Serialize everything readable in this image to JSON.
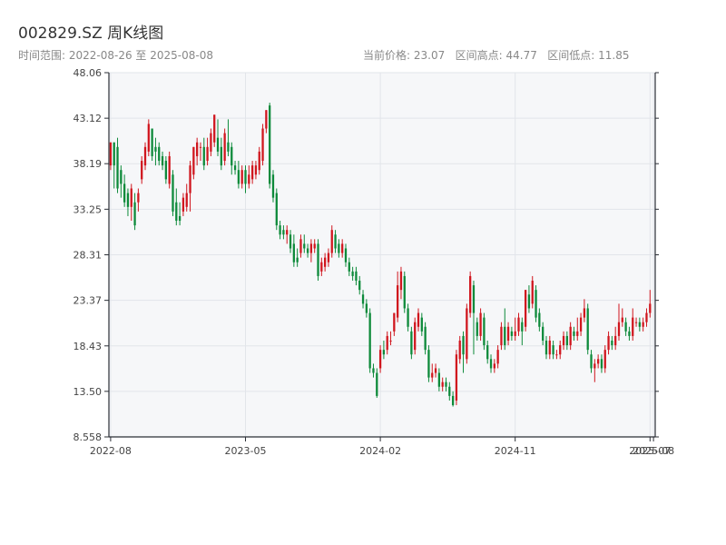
{
  "header": {
    "title": "002829.SZ 周K线图",
    "range_text": "时间范围: 2022-08-26 至 2025-08-08",
    "stats_text": "当前价格: 23.07   区间高点: 44.77   区间低点: 11.85"
  },
  "colors": {
    "up": "#d0161e",
    "down": "#0d8a3a",
    "plot_bg": "#f6f7f9",
    "grid": "#e2e5ea",
    "axis": "#2b2f36"
  },
  "chart_data": {
    "type": "candlestick",
    "title": "002829.SZ 周K线图",
    "xlabel": "",
    "ylabel": "",
    "ylim": [
      8.558,
      48.06
    ],
    "yticks": [
      "8.558",
      "13.50",
      "18.43",
      "23.37",
      "28.31",
      "33.25",
      "38.19",
      "43.12",
      "48.06"
    ],
    "ytick_values": [
      8.558,
      13.5,
      18.43,
      23.37,
      28.31,
      33.25,
      38.19,
      43.12,
      48.06
    ],
    "xticks": [
      "2022-08",
      "2023-05",
      "2024-02",
      "2024-11",
      "2025-07",
      "2025-08"
    ],
    "xtick_weeks": [
      0,
      39,
      78,
      117,
      156,
      157
    ],
    "grid": true,
    "series": [
      {
        "name": "",
        "ohlc_note": "weekly [open, close, low, high], one per week from 2022-08-26",
        "candles": [
          [
            38.0,
            40.5,
            37.5,
            40.5
          ],
          [
            40.5,
            38.0,
            35.5,
            40.5
          ],
          [
            40.0,
            35.5,
            35.0,
            41.0
          ],
          [
            37.5,
            36.0,
            34.5,
            38.0
          ],
          [
            36.0,
            34.0,
            33.5,
            37.0
          ],
          [
            35.0,
            33.5,
            32.5,
            35.5
          ],
          [
            33.5,
            35.5,
            32.0,
            36.0
          ],
          [
            34.0,
            31.5,
            31.0,
            35.0
          ],
          [
            34.0,
            35.0,
            33.0,
            35.5
          ],
          [
            36.5,
            38.5,
            36.0,
            39.0
          ],
          [
            38.0,
            40.0,
            37.5,
            40.5
          ],
          [
            39.5,
            42.5,
            39.0,
            43.0
          ],
          [
            42.0,
            39.0,
            38.5,
            42.0
          ],
          [
            40.0,
            39.5,
            38.0,
            41.0
          ],
          [
            40.0,
            38.5,
            38.0,
            40.5
          ],
          [
            39.0,
            38.0,
            37.5,
            39.5
          ],
          [
            38.5,
            36.5,
            36.0,
            39.0
          ],
          [
            36.0,
            39.0,
            35.5,
            39.5
          ],
          [
            37.0,
            33.0,
            32.5,
            37.5
          ],
          [
            34.0,
            32.0,
            31.5,
            35.5
          ],
          [
            32.5,
            32.0,
            31.5,
            34.0
          ],
          [
            33.0,
            34.5,
            32.5,
            35.0
          ],
          [
            33.5,
            35.0,
            33.0,
            36.0
          ],
          [
            35.0,
            38.0,
            33.0,
            38.5
          ],
          [
            37.0,
            40.0,
            36.5,
            40.0
          ],
          [
            39.0,
            40.5,
            38.0,
            41.0
          ],
          [
            40.0,
            40.0,
            38.5,
            40.5
          ],
          [
            40.0,
            38.0,
            37.5,
            41.0
          ],
          [
            38.5,
            40.0,
            38.0,
            41.0
          ],
          [
            39.5,
            41.5,
            39.0,
            42.0
          ],
          [
            40.5,
            43.5,
            40.0,
            43.5
          ],
          [
            41.0,
            39.5,
            39.0,
            43.0
          ],
          [
            40.0,
            38.0,
            37.5,
            41.0
          ],
          [
            38.5,
            41.5,
            38.0,
            42.0
          ],
          [
            40.5,
            39.5,
            39.0,
            43.0
          ],
          [
            40.0,
            38.0,
            37.0,
            40.5
          ],
          [
            38.0,
            37.5,
            37.0,
            38.5
          ],
          [
            37.5,
            36.0,
            35.5,
            38.5
          ],
          [
            36.0,
            37.5,
            35.5,
            38.0
          ],
          [
            37.5,
            36.0,
            35.0,
            38.0
          ],
          [
            36.0,
            37.0,
            35.5,
            38.0
          ],
          [
            36.5,
            38.0,
            36.0,
            38.5
          ],
          [
            37.0,
            38.0,
            36.5,
            38.5
          ],
          [
            37.5,
            39.5,
            37.0,
            40.0
          ],
          [
            38.5,
            42.0,
            38.0,
            42.5
          ],
          [
            42.0,
            44.0,
            41.5,
            44.0
          ],
          [
            44.5,
            36.0,
            35.5,
            44.8
          ],
          [
            37.0,
            34.5,
            34.0,
            37.5
          ],
          [
            35.0,
            31.5,
            31.0,
            35.5
          ],
          [
            31.5,
            30.5,
            30.0,
            32.0
          ],
          [
            31.0,
            30.5,
            30.0,
            31.5
          ],
          [
            30.5,
            31.0,
            29.5,
            31.5
          ],
          [
            30.5,
            29.0,
            28.5,
            31.0
          ],
          [
            29.5,
            27.5,
            27.0,
            30.5
          ],
          [
            28.0,
            27.5,
            27.0,
            29.0
          ],
          [
            28.5,
            30.0,
            28.0,
            30.5
          ],
          [
            29.5,
            29.0,
            28.5,
            30.5
          ],
          [
            29.0,
            28.5,
            28.0,
            29.5
          ],
          [
            28.5,
            29.5,
            27.5,
            30.0
          ],
          [
            29.0,
            29.5,
            28.5,
            30.0
          ],
          [
            29.5,
            26.0,
            25.5,
            30.0
          ],
          [
            26.5,
            27.5,
            26.0,
            28.0
          ],
          [
            27.0,
            28.0,
            26.5,
            28.5
          ],
          [
            27.5,
            28.5,
            27.0,
            29.0
          ],
          [
            28.5,
            31.0,
            28.0,
            31.5
          ],
          [
            30.5,
            29.0,
            28.5,
            31.0
          ],
          [
            29.5,
            28.5,
            28.0,
            30.0
          ],
          [
            28.5,
            29.5,
            28.0,
            30.0
          ],
          [
            29.0,
            27.5,
            27.0,
            29.5
          ],
          [
            27.5,
            26.5,
            26.0,
            28.0
          ],
          [
            26.5,
            26.0,
            25.5,
            27.0
          ],
          [
            26.5,
            25.5,
            25.0,
            27.0
          ],
          [
            25.5,
            24.5,
            24.0,
            26.0
          ],
          [
            24.0,
            23.0,
            22.5,
            24.5
          ],
          [
            23.0,
            22.0,
            21.5,
            23.5
          ],
          [
            22.0,
            16.0,
            15.5,
            22.5
          ],
          [
            16.0,
            15.5,
            15.0,
            16.5
          ],
          [
            15.5,
            13.0,
            12.8,
            16.0
          ],
          [
            16.0,
            18.0,
            15.5,
            18.5
          ],
          [
            18.0,
            17.5,
            17.0,
            19.0
          ],
          [
            18.0,
            19.5,
            17.5,
            20.0
          ],
          [
            19.0,
            19.0,
            18.5,
            20.0
          ],
          [
            20.0,
            22.0,
            19.5,
            22.0
          ],
          [
            21.5,
            25.0,
            21.0,
            26.5
          ],
          [
            24.5,
            26.5,
            23.5,
            27.0
          ],
          [
            26.0,
            22.5,
            22.0,
            26.5
          ],
          [
            22.5,
            20.5,
            20.0,
            23.0
          ],
          [
            20.0,
            17.5,
            17.0,
            20.5
          ],
          [
            18.0,
            21.0,
            17.5,
            21.5
          ],
          [
            20.5,
            22.0,
            20.0,
            22.5
          ],
          [
            21.5,
            20.0,
            19.5,
            22.0
          ],
          [
            20.5,
            18.0,
            17.5,
            21.0
          ],
          [
            18.0,
            15.0,
            14.5,
            18.5
          ],
          [
            15.0,
            15.5,
            14.5,
            16.5
          ],
          [
            15.5,
            16.0,
            15.0,
            16.5
          ],
          [
            15.5,
            14.0,
            13.5,
            16.0
          ],
          [
            14.0,
            14.5,
            13.5,
            15.0
          ],
          [
            14.5,
            14.0,
            13.5,
            15.0
          ],
          [
            14.0,
            13.0,
            12.5,
            14.5
          ],
          [
            13.0,
            12.0,
            11.85,
            13.5
          ],
          [
            12.5,
            17.5,
            12.0,
            18.0
          ],
          [
            17.0,
            19.0,
            16.5,
            19.5
          ],
          [
            19.5,
            17.5,
            15.5,
            20.0
          ],
          [
            17.0,
            22.5,
            16.5,
            23.0
          ],
          [
            22.0,
            26.0,
            21.5,
            26.5
          ],
          [
            25.0,
            22.0,
            17.5,
            25.5
          ],
          [
            21.0,
            19.5,
            19.0,
            21.5
          ],
          [
            19.5,
            22.0,
            19.0,
            22.5
          ],
          [
            21.5,
            18.5,
            18.0,
            22.0
          ],
          [
            18.5,
            17.0,
            16.5,
            19.0
          ],
          [
            17.0,
            16.0,
            15.5,
            17.5
          ],
          [
            16.0,
            16.5,
            15.5,
            17.0
          ],
          [
            16.5,
            18.0,
            16.0,
            18.5
          ],
          [
            18.5,
            20.5,
            18.0,
            21.0
          ],
          [
            20.5,
            18.5,
            18.0,
            22.5
          ],
          [
            19.0,
            20.5,
            18.5,
            21.0
          ],
          [
            20.0,
            19.5,
            19.0,
            20.5
          ],
          [
            19.5,
            20.0,
            19.0,
            21.5
          ],
          [
            20.0,
            21.5,
            19.5,
            22.0
          ],
          [
            21.0,
            20.0,
            18.5,
            21.5
          ],
          [
            20.5,
            24.5,
            20.0,
            24.5
          ],
          [
            24.0,
            22.5,
            22.0,
            25.0
          ],
          [
            23.0,
            25.5,
            22.5,
            26.0
          ],
          [
            24.5,
            21.5,
            21.0,
            25.0
          ],
          [
            22.0,
            20.5,
            20.0,
            22.5
          ],
          [
            20.5,
            19.0,
            18.5,
            21.0
          ],
          [
            19.0,
            17.5,
            17.0,
            19.5
          ],
          [
            17.5,
            19.0,
            17.0,
            19.5
          ],
          [
            18.5,
            17.5,
            17.0,
            19.0
          ],
          [
            17.5,
            17.5,
            17.0,
            18.0
          ],
          [
            17.5,
            18.5,
            17.0,
            19.0
          ],
          [
            18.5,
            19.5,
            18.0,
            20.0
          ],
          [
            19.5,
            18.5,
            18.0,
            20.0
          ],
          [
            18.5,
            20.5,
            18.0,
            21.0
          ],
          [
            20.0,
            19.5,
            19.0,
            20.5
          ],
          [
            19.5,
            20.0,
            19.0,
            21.5
          ],
          [
            20.0,
            21.5,
            19.5,
            22.0
          ],
          [
            21.5,
            22.5,
            21.0,
            23.5
          ],
          [
            22.5,
            18.0,
            17.5,
            23.0
          ],
          [
            17.5,
            16.0,
            15.5,
            18.0
          ],
          [
            16.0,
            16.5,
            14.5,
            17.0
          ],
          [
            16.5,
            17.0,
            16.0,
            17.5
          ],
          [
            17.0,
            16.0,
            15.5,
            17.5
          ],
          [
            16.0,
            18.0,
            15.5,
            18.5
          ],
          [
            18.0,
            19.5,
            17.5,
            20.0
          ],
          [
            19.0,
            18.5,
            18.0,
            19.5
          ],
          [
            18.5,
            19.5,
            18.0,
            20.5
          ],
          [
            19.5,
            21.0,
            19.0,
            23.0
          ],
          [
            21.0,
            21.5,
            20.5,
            22.5
          ],
          [
            21.0,
            20.0,
            19.5,
            21.5
          ],
          [
            20.0,
            19.5,
            19.0,
            20.5
          ],
          [
            19.5,
            21.5,
            19.0,
            22.5
          ],
          [
            21.0,
            21.0,
            20.5,
            21.5
          ],
          [
            21.0,
            20.5,
            20.0,
            21.5
          ],
          [
            20.5,
            21.0,
            20.0,
            21.5
          ],
          [
            21.0,
            22.0,
            20.5,
            22.5
          ],
          [
            22.0,
            23.0,
            21.5,
            24.5
          ]
        ]
      }
    ]
  }
}
